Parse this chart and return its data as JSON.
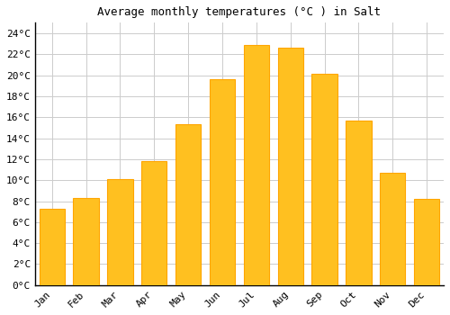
{
  "title": "Average monthly temperatures (°C ) in Salt",
  "months": [
    "Jan",
    "Feb",
    "Mar",
    "Apr",
    "May",
    "Jun",
    "Jul",
    "Aug",
    "Sep",
    "Oct",
    "Nov",
    "Dec"
  ],
  "values": [
    7.3,
    8.3,
    10.1,
    11.8,
    15.3,
    19.6,
    22.9,
    22.6,
    20.1,
    15.7,
    10.7,
    8.2
  ],
  "bar_color": "#FFC020",
  "bar_edge_color": "#FFA500",
  "background_color": "#FFFFFF",
  "grid_color": "#CCCCCC",
  "ylim": [
    0,
    25
  ],
  "yticks": [
    0,
    2,
    4,
    6,
    8,
    10,
    12,
    14,
    16,
    18,
    20,
    22,
    24
  ],
  "title_fontsize": 9,
  "tick_fontsize": 8,
  "font_family": "monospace"
}
